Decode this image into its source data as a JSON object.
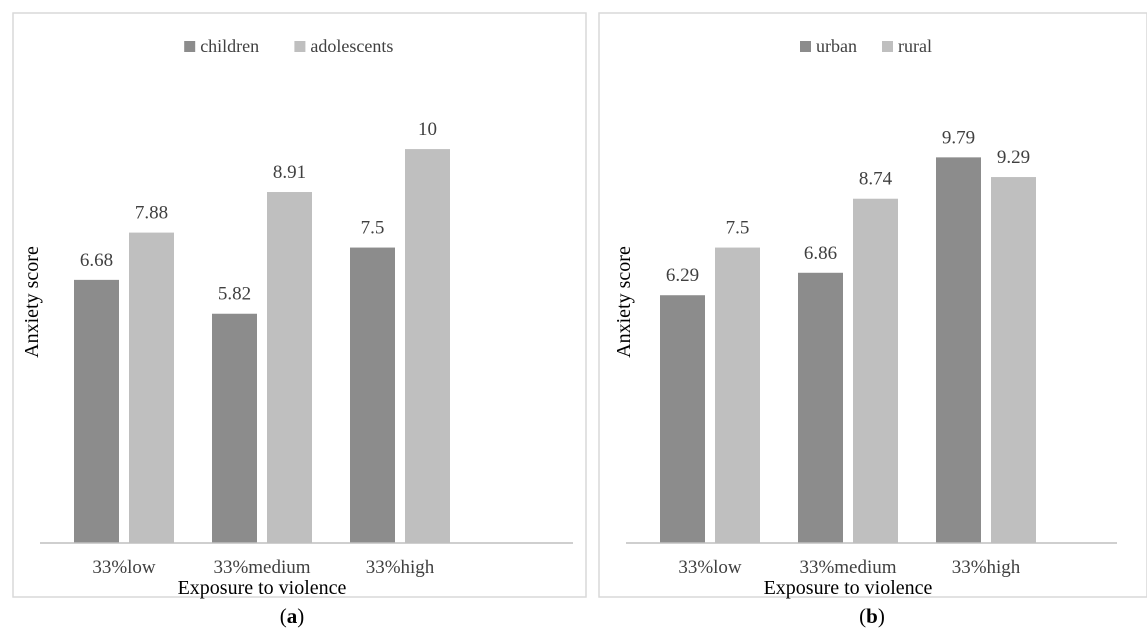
{
  "colors": {
    "series1": "#8c8c8c",
    "series2": "#bfbfbf",
    "frame": "#d9d9d9",
    "axis": "#bfbfbf",
    "text": "#404040"
  },
  "chart_data": [
    {
      "type": "bar",
      "panel_label": "(a)",
      "categories": [
        "33%low",
        "33%medium",
        "33%high"
      ],
      "series": [
        {
          "name": "children",
          "values": [
            6.68,
            5.82,
            7.5
          ]
        },
        {
          "name": "adolescents",
          "values": [
            7.88,
            8.91,
            10
          ]
        }
      ],
      "value_labels": [
        [
          "6.68",
          "5.82",
          "7.5"
        ],
        [
          "7.88",
          "8.91",
          "10"
        ]
      ],
      "xlabel": "Exposure to violence",
      "ylabel": "Anxiety score",
      "ylim": [
        0,
        11.5
      ],
      "grid": false,
      "legend_position": "top-center"
    },
    {
      "type": "bar",
      "panel_label": "(b)",
      "categories": [
        "33%low",
        "33%medium",
        "33%high"
      ],
      "series": [
        {
          "name": "urban",
          "values": [
            6.29,
            6.86,
            9.79
          ]
        },
        {
          "name": "rural",
          "values": [
            7.5,
            8.74,
            9.29
          ]
        }
      ],
      "value_labels": [
        [
          "6.29",
          "6.86",
          "9.79"
        ],
        [
          "7.5",
          "8.74",
          "9.29"
        ]
      ],
      "xlabel": "Exposure to violence",
      "ylabel": "Anxiety score",
      "ylim": [
        0,
        11.5
      ],
      "grid": false,
      "legend_position": "top-center"
    }
  ]
}
